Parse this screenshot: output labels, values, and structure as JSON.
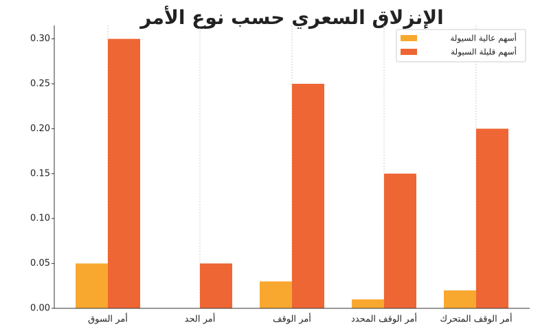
{
  "chart_data": {
    "type": "bar",
    "title": "الإنزلاق السعري حسب نوع الأمر",
    "categories": [
      "أمر السوق",
      "أمر الحد",
      "أمر الوقف",
      "أمر الوقف المحدد",
      "أمر الوقف المتحرك"
    ],
    "series": [
      {
        "name": "أسهم عالية السيولة",
        "color": "#f9a82f",
        "values": [
          0.05,
          0,
          0.03,
          0.01,
          0.02
        ]
      },
      {
        "name": "أسهم قليلة السيولة",
        "color": "#ee6633",
        "values": [
          0.3,
          0.05,
          0.25,
          0.15,
          0.2
        ]
      }
    ],
    "ylim": [
      0,
      0.315
    ],
    "yticks": [
      {
        "value": 0,
        "label": "0.00"
      },
      {
        "value": 0.05,
        "label": "0.05"
      },
      {
        "value": 0.1,
        "label": "0.10"
      },
      {
        "value": 0.15,
        "label": "0.15"
      },
      {
        "value": 0.2,
        "label": "0.20"
      },
      {
        "value": 0.25,
        "label": "0.25"
      },
      {
        "value": 0.3,
        "label": "0.30"
      }
    ],
    "grid": "x",
    "legend": "upper right"
  }
}
